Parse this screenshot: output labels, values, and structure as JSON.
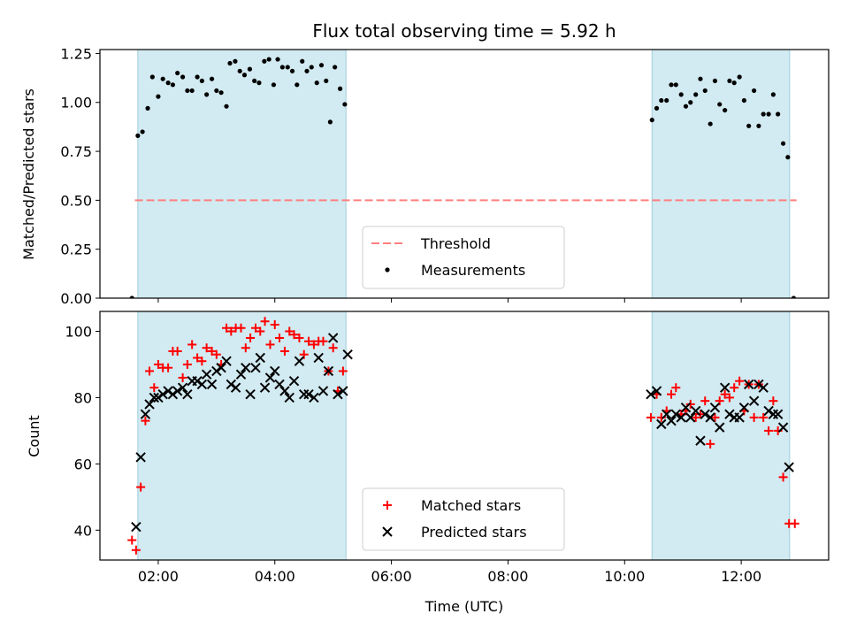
{
  "chart_data": [
    {
      "type": "scatter",
      "title": "Flux total observing time = 5.92 h",
      "xlabel": "",
      "ylabel": "Matched/Predicted stars",
      "xlim_hours": [
        1.0,
        13.5
      ],
      "ylim": [
        0,
        1.27
      ],
      "yticks": [
        0.0,
        0.25,
        0.5,
        0.75,
        1.0,
        1.25
      ],
      "ytick_labels": [
        "0.00",
        "0.25",
        "0.50",
        "0.75",
        "1.00",
        "1.25"
      ],
      "xticks": [
        2,
        4,
        6,
        8,
        10,
        12
      ],
      "xtick_labels": [
        "",
        "",
        "",
        "",
        "",
        ""
      ],
      "shaded_spans_hours": [
        [
          1.65,
          5.22
        ],
        [
          10.47,
          12.83
        ]
      ],
      "shade_color": "#add8e6",
      "legend": {
        "placement": "lower-center",
        "entries": [
          {
            "label": "Threshold",
            "marker": "dashed-line",
            "color": "#ff7f7f"
          },
          {
            "label": "Measurements",
            "marker": "dot",
            "color": "#000000"
          }
        ]
      },
      "threshold": {
        "y": 0.5,
        "x_range_hours": [
          1.6,
          12.95
        ],
        "color": "#ff7f7f"
      },
      "series": [
        {
          "name": "Measurements",
          "color": "#000000",
          "points": [
            [
              1.55,
              0.0
            ],
            [
              1.65,
              0.83
            ],
            [
              1.73,
              0.85
            ],
            [
              1.82,
              0.97
            ],
            [
              1.9,
              1.13
            ],
            [
              2.0,
              1.03
            ],
            [
              2.08,
              1.12
            ],
            [
              2.17,
              1.1
            ],
            [
              2.25,
              1.09
            ],
            [
              2.33,
              1.15
            ],
            [
              2.42,
              1.13
            ],
            [
              2.5,
              1.06
            ],
            [
              2.58,
              1.06
            ],
            [
              2.67,
              1.13
            ],
            [
              2.75,
              1.11
            ],
            [
              2.83,
              1.04
            ],
            [
              2.92,
              1.12
            ],
            [
              3.0,
              1.06
            ],
            [
              3.08,
              1.05
            ],
            [
              3.17,
              0.98
            ],
            [
              3.23,
              1.2
            ],
            [
              3.32,
              1.21
            ],
            [
              3.4,
              1.16
            ],
            [
              3.48,
              1.14
            ],
            [
              3.57,
              1.17
            ],
            [
              3.65,
              1.11
            ],
            [
              3.73,
              1.1
            ],
            [
              3.82,
              1.21
            ],
            [
              3.9,
              1.22
            ],
            [
              3.98,
              1.09
            ],
            [
              4.05,
              1.22
            ],
            [
              4.13,
              1.18
            ],
            [
              4.22,
              1.18
            ],
            [
              4.3,
              1.16
            ],
            [
              4.38,
              1.09
            ],
            [
              4.47,
              1.21
            ],
            [
              4.55,
              1.16
            ],
            [
              4.63,
              1.18
            ],
            [
              4.72,
              1.1
            ],
            [
              4.8,
              1.19
            ],
            [
              4.88,
              1.11
            ],
            [
              4.95,
              0.9
            ],
            [
              5.03,
              1.18
            ],
            [
              5.12,
              1.07
            ],
            [
              5.2,
              0.99
            ],
            [
              10.47,
              0.91
            ],
            [
              10.55,
              0.97
            ],
            [
              10.63,
              1.01
            ],
            [
              10.72,
              1.01
            ],
            [
              10.8,
              1.09
            ],
            [
              10.88,
              1.09
            ],
            [
              10.97,
              1.04
            ],
            [
              11.05,
              0.98
            ],
            [
              11.13,
              1.0
            ],
            [
              11.22,
              1.04
            ],
            [
              11.3,
              1.12
            ],
            [
              11.38,
              1.06
            ],
            [
              11.47,
              0.89
            ],
            [
              11.55,
              1.11
            ],
            [
              11.63,
              0.99
            ],
            [
              11.72,
              0.96
            ],
            [
              11.8,
              1.11
            ],
            [
              11.88,
              1.1
            ],
            [
              11.97,
              1.13
            ],
            [
              12.05,
              1.01
            ],
            [
              12.13,
              0.88
            ],
            [
              12.22,
              1.06
            ],
            [
              12.3,
              0.88
            ],
            [
              12.38,
              0.94
            ],
            [
              12.47,
              0.94
            ],
            [
              12.55,
              1.04
            ],
            [
              12.63,
              0.94
            ],
            [
              12.72,
              0.79
            ],
            [
              12.8,
              0.72
            ],
            [
              12.9,
              0.0
            ]
          ]
        }
      ]
    },
    {
      "type": "scatter",
      "title": "",
      "xlabel": "Time (UTC)",
      "ylabel": "Count",
      "xlim_hours": [
        1.0,
        13.5
      ],
      "ylim": [
        31,
        106
      ],
      "yticks": [
        40,
        60,
        80,
        100
      ],
      "ytick_labels": [
        "40",
        "60",
        "80",
        "100"
      ],
      "xticks": [
        2,
        4,
        6,
        8,
        10,
        12
      ],
      "xtick_labels": [
        "02:00",
        "04:00",
        "06:00",
        "08:00",
        "10:00",
        "12:00"
      ],
      "shaded_spans_hours": [
        [
          1.65,
          5.22
        ],
        [
          10.47,
          12.83
        ]
      ],
      "shade_color": "#add8e6",
      "legend": {
        "placement": "lower-center",
        "entries": [
          {
            "label": "Matched stars",
            "marker": "plus",
            "color": "#ff0000"
          },
          {
            "label": "Predicted stars",
            "marker": "x",
            "color": "#000000"
          }
        ]
      },
      "series": [
        {
          "name": "Matched stars",
          "marker": "plus",
          "color": "#ff0000",
          "points": [
            [
              1.55,
              37
            ],
            [
              1.62,
              34
            ],
            [
              1.7,
              53
            ],
            [
              1.78,
              73
            ],
            [
              1.85,
              88
            ],
            [
              1.93,
              83
            ],
            [
              2.0,
              90
            ],
            [
              2.08,
              89
            ],
            [
              2.17,
              89
            ],
            [
              2.25,
              94
            ],
            [
              2.33,
              94
            ],
            [
              2.42,
              86
            ],
            [
              2.5,
              90
            ],
            [
              2.58,
              96
            ],
            [
              2.67,
              92
            ],
            [
              2.75,
              91
            ],
            [
              2.83,
              95
            ],
            [
              2.92,
              94
            ],
            [
              3.0,
              93
            ],
            [
              3.08,
              90
            ],
            [
              3.17,
              101
            ],
            [
              3.25,
              100
            ],
            [
              3.33,
              101
            ],
            [
              3.42,
              101
            ],
            [
              3.5,
              95
            ],
            [
              3.58,
              98
            ],
            [
              3.67,
              101
            ],
            [
              3.75,
              100
            ],
            [
              3.83,
              103
            ],
            [
              3.92,
              96
            ],
            [
              4.0,
              102
            ],
            [
              4.08,
              98
            ],
            [
              4.17,
              94
            ],
            [
              4.25,
              100
            ],
            [
              4.33,
              99
            ],
            [
              4.42,
              98
            ],
            [
              4.5,
              93
            ],
            [
              4.58,
              97
            ],
            [
              4.67,
              96
            ],
            [
              4.75,
              97
            ],
            [
              4.83,
              97
            ],
            [
              4.92,
              88
            ],
            [
              5.0,
              95
            ],
            [
              5.08,
              82
            ],
            [
              5.17,
              88
            ],
            [
              10.45,
              74
            ],
            [
              10.55,
              81
            ],
            [
              10.63,
              74
            ],
            [
              10.72,
              76
            ],
            [
              10.8,
              81
            ],
            [
              10.88,
              83
            ],
            [
              10.97,
              75
            ],
            [
              11.05,
              76
            ],
            [
              11.13,
              78
            ],
            [
              11.22,
              74
            ],
            [
              11.3,
              75
            ],
            [
              11.38,
              79
            ],
            [
              11.47,
              66
            ],
            [
              11.55,
              74
            ],
            [
              11.63,
              79
            ],
            [
              11.72,
              81
            ],
            [
              11.8,
              80
            ],
            [
              11.88,
              83
            ],
            [
              11.97,
              85
            ],
            [
              12.05,
              76
            ],
            [
              12.13,
              84
            ],
            [
              12.22,
              74
            ],
            [
              12.3,
              84
            ],
            [
              12.38,
              74
            ],
            [
              12.47,
              70
            ],
            [
              12.55,
              79
            ],
            [
              12.63,
              70
            ],
            [
              12.72,
              56
            ],
            [
              12.82,
              42
            ],
            [
              12.92,
              42
            ]
          ]
        },
        {
          "name": "Predicted stars",
          "marker": "x",
          "color": "#000000",
          "points": [
            [
              1.62,
              41
            ],
            [
              1.7,
              62
            ],
            [
              1.78,
              75
            ],
            [
              1.85,
              78
            ],
            [
              1.93,
              80
            ],
            [
              2.0,
              80
            ],
            [
              2.08,
              81
            ],
            [
              2.17,
              82
            ],
            [
              2.25,
              81
            ],
            [
              2.33,
              82
            ],
            [
              2.42,
              83
            ],
            [
              2.5,
              81
            ],
            [
              2.58,
              85
            ],
            [
              2.67,
              85
            ],
            [
              2.75,
              84
            ],
            [
              2.83,
              87
            ],
            [
              2.92,
              84
            ],
            [
              3.0,
              88
            ],
            [
              3.08,
              89
            ],
            [
              3.17,
              91
            ],
            [
              3.25,
              84
            ],
            [
              3.33,
              83
            ],
            [
              3.42,
              87
            ],
            [
              3.5,
              89
            ],
            [
              3.58,
              81
            ],
            [
              3.67,
              89
            ],
            [
              3.75,
              92
            ],
            [
              3.83,
              83
            ],
            [
              3.92,
              86
            ],
            [
              4.0,
              88
            ],
            [
              4.08,
              84
            ],
            [
              4.17,
              82
            ],
            [
              4.25,
              80
            ],
            [
              4.33,
              85
            ],
            [
              4.42,
              91
            ],
            [
              4.5,
              81
            ],
            [
              4.58,
              81
            ],
            [
              4.67,
              80
            ],
            [
              4.75,
              92
            ],
            [
              4.83,
              82
            ],
            [
              4.92,
              88
            ],
            [
              5.0,
              98
            ],
            [
              5.08,
              81
            ],
            [
              5.17,
              82
            ],
            [
              5.25,
              93
            ],
            [
              10.45,
              81
            ],
            [
              10.55,
              82
            ],
            [
              10.63,
              72
            ],
            [
              10.72,
              75
            ],
            [
              10.8,
              73
            ],
            [
              10.88,
              75
            ],
            [
              10.97,
              74
            ],
            [
              11.05,
              77
            ],
            [
              11.13,
              74
            ],
            [
              11.22,
              76
            ],
            [
              11.3,
              67
            ],
            [
              11.38,
              75
            ],
            [
              11.47,
              74
            ],
            [
              11.55,
              77
            ],
            [
              11.63,
              71
            ],
            [
              11.72,
              83
            ],
            [
              11.8,
              75
            ],
            [
              11.88,
              74
            ],
            [
              11.97,
              74
            ],
            [
              12.05,
              77
            ],
            [
              12.13,
              84
            ],
            [
              12.22,
              79
            ],
            [
              12.3,
              84
            ],
            [
              12.38,
              83
            ],
            [
              12.47,
              76
            ],
            [
              12.55,
              75
            ],
            [
              12.63,
              75
            ],
            [
              12.72,
              71
            ],
            [
              12.82,
              59
            ]
          ]
        }
      ]
    }
  ]
}
